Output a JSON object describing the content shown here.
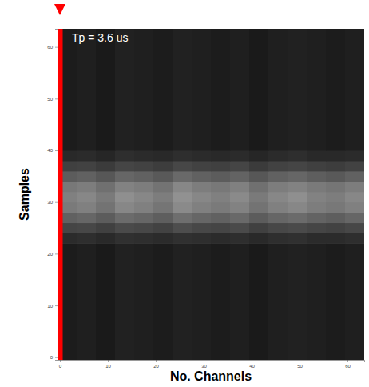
{
  "chart_data": {
    "type": "heatmap",
    "x_label": "No. Channels",
    "y_label": "Samples",
    "annotation": "Tp = 3.6 us",
    "highlight_channel": 0,
    "color": "#ff0000",
    "xlim": [
      -0.5,
      63.5
    ],
    "ylim": [
      -0.5,
      63.5
    ],
    "xticks": [
      0,
      10,
      20,
      30,
      40,
      50,
      60
    ],
    "yticks": [
      0,
      10,
      20,
      30,
      40,
      50,
      60
    ],
    "zlim": [
      0,
      1
    ],
    "x_edges": [
      -0.5,
      3.5,
      7.5,
      11.5,
      15.5,
      19.5,
      23.5,
      27.5,
      31.5,
      35.5,
      39.5,
      43.5,
      47.5,
      51.5,
      55.5,
      59.5,
      63.5
    ],
    "y_edges": [
      -0.5,
      22,
      24,
      26,
      28,
      30,
      32,
      34,
      36,
      38,
      40,
      63.5
    ],
    "cells": [
      [
        0.11,
        0.12,
        0.1,
        0.13,
        0.12,
        0.11,
        0.13,
        0.12,
        0.11,
        0.12,
        0.1,
        0.12,
        0.13,
        0.12,
        0.11,
        0.12
      ],
      [
        0.17,
        0.18,
        0.16,
        0.19,
        0.18,
        0.17,
        0.19,
        0.18,
        0.17,
        0.18,
        0.16,
        0.18,
        0.19,
        0.17,
        0.17,
        0.18
      ],
      [
        0.27,
        0.28,
        0.25,
        0.29,
        0.28,
        0.26,
        0.3,
        0.28,
        0.27,
        0.29,
        0.25,
        0.28,
        0.29,
        0.27,
        0.26,
        0.28
      ],
      [
        0.38,
        0.4,
        0.36,
        0.42,
        0.4,
        0.37,
        0.43,
        0.4,
        0.38,
        0.41,
        0.36,
        0.4,
        0.42,
        0.39,
        0.37,
        0.4
      ],
      [
        0.48,
        0.5,
        0.45,
        0.53,
        0.5,
        0.46,
        0.54,
        0.5,
        0.48,
        0.51,
        0.45,
        0.5,
        0.53,
        0.49,
        0.47,
        0.5
      ],
      [
        0.5,
        0.53,
        0.48,
        0.56,
        0.53,
        0.49,
        0.57,
        0.53,
        0.5,
        0.54,
        0.48,
        0.53,
        0.56,
        0.51,
        0.49,
        0.53
      ],
      [
        0.47,
        0.49,
        0.44,
        0.51,
        0.49,
        0.45,
        0.53,
        0.49,
        0.47,
        0.5,
        0.44,
        0.49,
        0.51,
        0.48,
        0.46,
        0.49
      ],
      [
        0.36,
        0.38,
        0.34,
        0.4,
        0.38,
        0.35,
        0.41,
        0.38,
        0.36,
        0.39,
        0.34,
        0.38,
        0.4,
        0.37,
        0.35,
        0.38
      ],
      [
        0.25,
        0.26,
        0.23,
        0.27,
        0.26,
        0.24,
        0.28,
        0.26,
        0.25,
        0.27,
        0.23,
        0.26,
        0.27,
        0.25,
        0.24,
        0.26
      ],
      [
        0.16,
        0.17,
        0.15,
        0.18,
        0.17,
        0.16,
        0.18,
        0.17,
        0.16,
        0.17,
        0.15,
        0.17,
        0.18,
        0.16,
        0.16,
        0.17
      ],
      [
        0.11,
        0.12,
        0.1,
        0.13,
        0.12,
        0.11,
        0.13,
        0.12,
        0.11,
        0.12,
        0.1,
        0.12,
        0.13,
        0.12,
        0.11,
        0.12
      ]
    ]
  }
}
